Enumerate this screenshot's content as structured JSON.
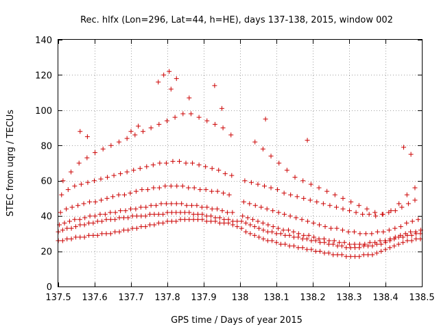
{
  "chart_data": {
    "type": "scatter",
    "title": "Rec. hlfx (Lon=296, Lat=44, h=HE), days 137-138, 2015, window 002",
    "xlabel": "GPS time / Days of year 2015",
    "ylabel": "STEC from uqrg / TECUs",
    "xlim": [
      137.5,
      138.5
    ],
    "ylim": [
      0,
      140
    ],
    "xticks": [
      "137.5",
      "137.6",
      "137.7",
      "137.8",
      "137.9",
      "138",
      "138.1",
      "138.2",
      "138.3",
      "138.4",
      "138.5"
    ],
    "yticks": [
      "0",
      "20",
      "40",
      "60",
      "80",
      "100",
      "120",
      "140"
    ],
    "grid": true,
    "marker": "+",
    "color": "#cc0000",
    "series": [
      {
        "x": [
          137.5,
          137.512,
          137.524,
          137.536,
          137.548,
          137.56,
          137.572,
          137.584,
          137.596,
          137.608,
          137.62,
          137.632,
          137.644,
          137.656,
          137.668,
          137.68,
          137.692,
          137.704,
          137.716,
          137.728,
          137.74,
          137.752,
          137.764,
          137.776,
          137.788,
          137.8,
          137.812,
          137.824,
          137.836,
          137.848,
          137.86,
          137.872,
          137.884,
          137.896,
          137.908,
          137.92,
          137.932,
          137.944,
          137.956,
          137.968,
          137.98,
          137.992,
          138.004,
          138.016,
          138.028,
          138.04,
          138.052,
          138.064,
          138.076,
          138.088,
          138.1,
          138.112,
          138.124,
          138.136,
          138.148,
          138.16,
          138.172,
          138.184,
          138.196,
          138.208,
          138.22,
          138.232,
          138.244,
          138.256,
          138.268,
          138.28,
          138.292,
          138.304,
          138.316,
          138.328,
          138.34,
          138.352,
          138.364,
          138.376,
          138.388,
          138.4,
          138.412,
          138.424,
          138.436,
          138.448,
          138.46,
          138.472,
          138.484,
          138.496
        ],
        "y": [
          26,
          26,
          27,
          27,
          28,
          28,
          28,
          29,
          29,
          29,
          30,
          30,
          30,
          31,
          31,
          32,
          32,
          33,
          33,
          34,
          34,
          35,
          35,
          36,
          36,
          37,
          37,
          37,
          38,
          38,
          38,
          38,
          38,
          38,
          37,
          37,
          37,
          36,
          36,
          36,
          35,
          34,
          33,
          31,
          30,
          29,
          28,
          27,
          26,
          26,
          25,
          24,
          24,
          23,
          23,
          22,
          22,
          21,
          21,
          20,
          20,
          19,
          19,
          18,
          18,
          18,
          17,
          17,
          17,
          17,
          18,
          18,
          18,
          19,
          20,
          21,
          22,
          23,
          24,
          25,
          26,
          26,
          27,
          27
        ]
      },
      {
        "x": [
          137.5,
          137.512,
          137.524,
          137.536,
          137.548,
          137.56,
          137.572,
          137.584,
          137.596,
          137.608,
          137.62,
          137.632,
          137.644,
          137.656,
          137.668,
          137.68,
          137.692,
          137.704,
          137.716,
          137.728,
          137.74,
          137.752,
          137.764,
          137.776,
          137.788,
          137.8,
          137.812,
          137.824,
          137.836,
          137.848,
          137.86,
          137.872,
          137.884,
          137.896,
          137.908,
          137.92,
          137.932,
          137.944,
          137.956,
          137.968,
          137.98,
          137.992,
          138.004,
          138.016,
          138.028,
          138.04,
          138.052,
          138.064,
          138.076,
          138.088,
          138.1,
          138.112,
          138.124,
          138.136,
          138.148,
          138.16,
          138.172,
          138.184,
          138.196,
          138.208,
          138.22,
          138.232,
          138.244,
          138.256,
          138.268,
          138.28,
          138.292,
          138.304,
          138.316,
          138.328,
          138.34,
          138.352,
          138.364,
          138.376,
          138.388,
          138.4,
          138.412,
          138.424,
          138.436,
          138.448,
          138.46,
          138.472,
          138.484,
          138.496
        ],
        "y": [
          31,
          32,
          33,
          33,
          34,
          35,
          35,
          36,
          36,
          37,
          37,
          38,
          38,
          38,
          39,
          39,
          39,
          40,
          40,
          40,
          40,
          41,
          41,
          41,
          41,
          42,
          42,
          42,
          42,
          42,
          42,
          41,
          41,
          41,
          40,
          40,
          39,
          39,
          38,
          38,
          37,
          37,
          37,
          36,
          35,
          34,
          33,
          32,
          31,
          31,
          30,
          30,
          29,
          29,
          28,
          28,
          27,
          27,
          26,
          26,
          25,
          25,
          24,
          24,
          23,
          23,
          22,
          22,
          22,
          22,
          23,
          23,
          23,
          24,
          24,
          25,
          26,
          27,
          28,
          28,
          29,
          29,
          30,
          30
        ]
      },
      {
        "x": [
          137.503,
          137.517,
          137.531,
          137.545,
          137.559,
          137.573,
          137.587,
          137.601,
          137.615,
          137.629,
          137.643,
          137.657,
          137.671,
          137.685,
          137.699,
          137.713,
          137.727,
          137.741,
          137.755,
          137.769,
          137.783,
          137.797,
          137.811,
          137.825,
          137.839,
          137.853,
          137.867,
          137.881,
          137.895,
          137.909,
          137.923,
          137.937,
          137.951,
          137.965,
          137.979,
          138.007,
          138.021,
          138.035,
          138.049,
          138.063,
          138.077,
          138.091,
          138.105,
          138.119,
          138.133,
          138.147,
          138.161,
          138.175,
          138.189,
          138.203,
          138.217,
          138.231,
          138.245,
          138.259,
          138.273,
          138.287,
          138.301,
          138.315,
          138.329,
          138.343,
          138.357,
          138.371,
          138.385,
          138.399,
          138.413,
          138.427,
          138.441,
          138.455,
          138.469,
          138.483,
          138.497
        ],
        "y": [
          35,
          36,
          37,
          38,
          38,
          39,
          40,
          40,
          41,
          41,
          42,
          42,
          43,
          43,
          44,
          44,
          45,
          45,
          46,
          46,
          47,
          47,
          47,
          47,
          47,
          46,
          46,
          46,
          45,
          45,
          44,
          44,
          43,
          42,
          42,
          40,
          39,
          38,
          37,
          36,
          35,
          34,
          33,
          32,
          32,
          31,
          30,
          29,
          29,
          28,
          27,
          27,
          26,
          26,
          25,
          25,
          24,
          24,
          24,
          24,
          25,
          25,
          26,
          26,
          27,
          28,
          29,
          30,
          31,
          31,
          32
        ]
      },
      {
        "x": [
          137.506,
          137.522,
          137.538,
          137.554,
          137.57,
          137.586,
          137.602,
          137.618,
          137.634,
          137.65,
          137.666,
          137.682,
          137.698,
          137.714,
          137.73,
          137.746,
          137.762,
          137.778,
          137.794,
          137.81,
          137.826,
          137.842,
          137.858,
          137.874,
          137.89,
          137.906,
          137.922,
          137.938,
          137.954,
          137.97,
          138.01,
          138.026,
          138.042,
          138.058,
          138.074,
          138.09,
          138.106,
          138.122,
          138.138,
          138.154,
          138.17,
          138.186,
          138.202,
          138.218,
          138.234,
          138.25,
          138.266,
          138.282,
          138.298,
          138.314,
          138.33,
          138.346,
          138.362,
          138.378,
          138.394,
          138.41,
          138.426,
          138.442,
          138.458,
          138.474,
          138.49
        ],
        "y": [
          42,
          44,
          45,
          46,
          47,
          48,
          48,
          49,
          50,
          51,
          52,
          52,
          53,
          54,
          55,
          55,
          56,
          56,
          57,
          57,
          57,
          57,
          56,
          56,
          55,
          55,
          54,
          54,
          53,
          52,
          48,
          47,
          46,
          45,
          44,
          43,
          42,
          41,
          40,
          39,
          38,
          37,
          36,
          35,
          34,
          33,
          33,
          32,
          31,
          31,
          30,
          30,
          30,
          31,
          31,
          32,
          33,
          34,
          36,
          37,
          38
        ]
      },
      {
        "x": [
          137.509,
          137.527,
          137.545,
          137.563,
          137.581,
          137.599,
          137.617,
          137.635,
          137.653,
          137.671,
          137.689,
          137.707,
          137.725,
          137.743,
          137.761,
          137.779,
          137.797,
          137.815,
          137.833,
          137.851,
          137.869,
          137.887,
          137.905,
          137.923,
          137.941,
          137.959,
          137.977,
          138.013,
          138.031,
          138.049,
          138.067,
          138.085,
          138.103,
          138.121,
          138.139,
          138.157,
          138.175,
          138.193,
          138.211,
          138.229,
          138.247,
          138.265,
          138.283,
          138.301,
          138.319,
          138.337,
          138.355,
          138.373,
          138.391,
          138.409,
          138.427,
          138.445,
          138.463,
          138.481
        ],
        "y": [
          52,
          55,
          57,
          58,
          59,
          60,
          61,
          62,
          63,
          64,
          65,
          66,
          67,
          68,
          69,
          70,
          70,
          71,
          71,
          70,
          70,
          69,
          68,
          67,
          66,
          64,
          63,
          60,
          59,
          58,
          57,
          56,
          55,
          53,
          52,
          51,
          50,
          49,
          48,
          47,
          46,
          45,
          44,
          43,
          42,
          41,
          41,
          40,
          41,
          42,
          43,
          45,
          47,
          49
        ]
      },
      {
        "x": [
          137.513,
          137.535,
          137.557,
          137.579,
          137.601,
          137.623,
          137.645,
          137.667,
          137.689,
          137.711,
          137.733,
          137.755,
          137.777,
          137.799,
          137.821,
          137.843,
          137.865,
          137.887,
          137.909,
          137.931,
          137.953,
          137.975,
          138.041,
          138.063,
          138.085,
          138.107,
          138.129,
          138.151,
          138.173,
          138.195,
          138.217,
          138.239,
          138.261,
          138.283,
          138.305,
          138.327,
          138.349,
          138.371,
          138.393,
          138.415,
          138.437,
          138.459,
          138.481
        ],
        "y": [
          60,
          65,
          70,
          73,
          76,
          78,
          80,
          82,
          84,
          86,
          88,
          90,
          92,
          94,
          96,
          98,
          98,
          96,
          94,
          92,
          90,
          86,
          82,
          78,
          74,
          70,
          66,
          62,
          60,
          58,
          56,
          54,
          52,
          50,
          48,
          46,
          44,
          42,
          41,
          43,
          47,
          52,
          56
        ]
      },
      {
        "x": [
          137.56,
          137.58,
          137.7,
          137.72,
          137.775,
          137.79,
          137.805,
          137.81,
          137.825,
          137.86,
          137.93,
          137.95,
          138.07,
          138.185,
          138.45,
          138.47
        ],
        "y": [
          88,
          85,
          88,
          91,
          116,
          120,
          122,
          112,
          118,
          107,
          114,
          101,
          95,
          83,
          79,
          75
        ]
      }
    ]
  }
}
